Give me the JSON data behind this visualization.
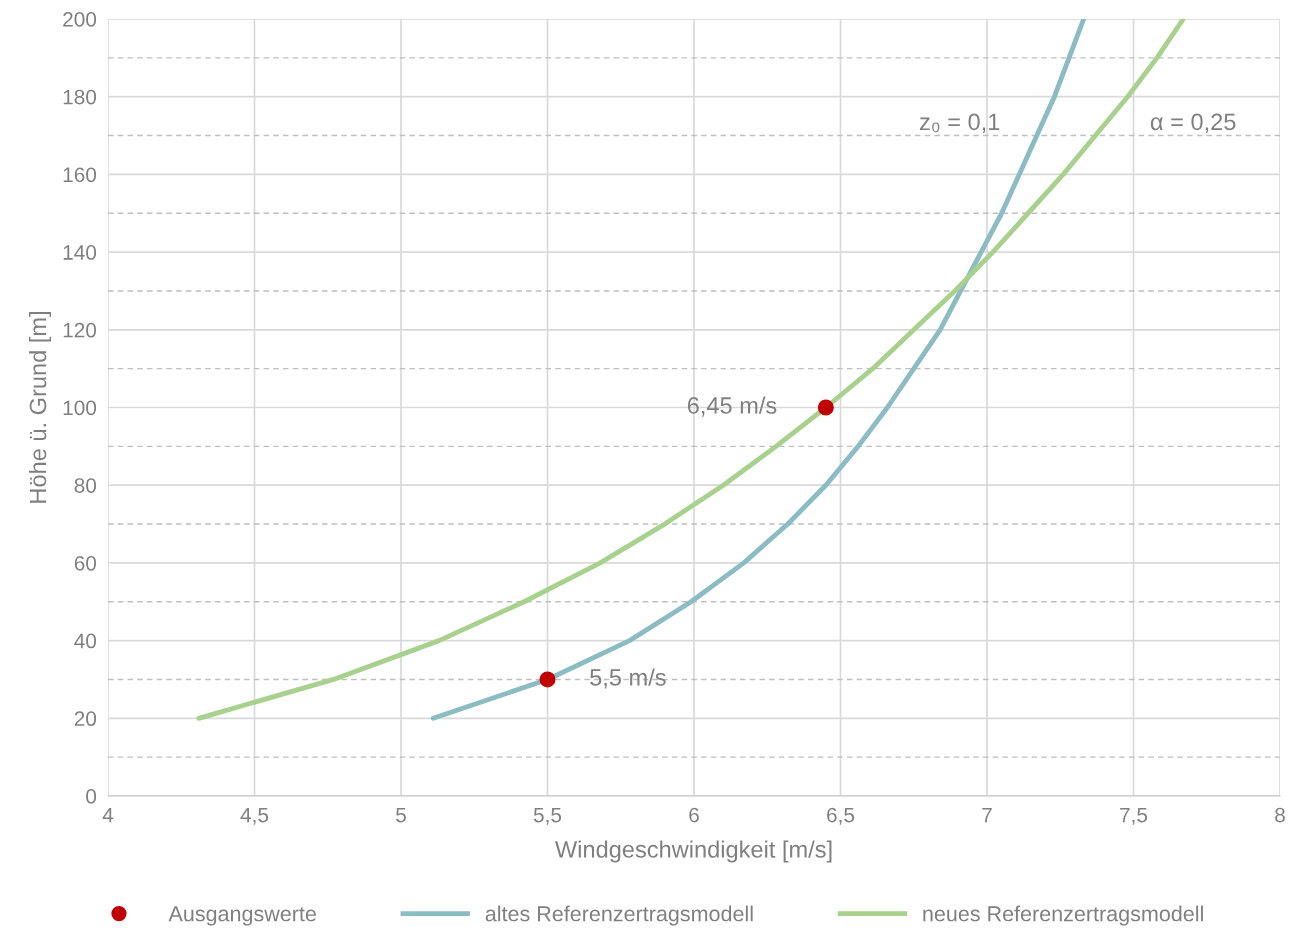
{
  "chart_data": {
    "type": "line",
    "xlabel": "Windgeschwindigkeit [m/s]",
    "ylabel": "Höhe ü. Grund [m]",
    "xlim": [
      4,
      8
    ],
    "ylim": [
      0,
      200
    ],
    "xticks": [
      4,
      {
        "value": 4.5,
        "label": "4,5"
      },
      5,
      {
        "value": 5.5,
        "label": "5,5"
      },
      6,
      {
        "value": 6.5,
        "label": "6,5"
      },
      7,
      {
        "value": 7.5,
        "label": "7,5"
      },
      8
    ],
    "yticks": [
      0,
      20,
      40,
      60,
      80,
      100,
      120,
      140,
      160,
      180,
      200
    ],
    "grid": true,
    "legend": "bottom",
    "marker": "none",
    "line_style": "solid",
    "series": [
      {
        "name": "Ausgangswerte",
        "type": "scatter",
        "marker": "circle",
        "color": "#c00000",
        "x": [
          5.5,
          6.45
        ],
        "values": [
          30,
          100
        ]
      },
      {
        "name": "altes Referenzertragsmodell",
        "color": "#8bbcc3",
        "x": [
          5.11,
          5.5,
          5.78,
          5.99,
          6.17,
          6.32,
          6.45,
          6.56,
          6.66,
          6.75,
          6.84,
          6.91,
          6.98,
          7.05,
          7.11,
          7.17,
          7.23,
          7.28,
          7.33
        ],
        "values": [
          20,
          30,
          40,
          50,
          60,
          70,
          80,
          90,
          100,
          110,
          120,
          130,
          140,
          150,
          160,
          170,
          180,
          190,
          200
        ]
      },
      {
        "name": "neues Referenzertragsmodell",
        "color": "#a9d18e",
        "x": [
          4.31,
          4.77,
          5.13,
          5.42,
          5.68,
          5.9,
          6.1,
          6.28,
          6.45,
          6.61,
          6.75,
          6.89,
          7.02,
          7.14,
          7.26,
          7.37,
          7.48,
          7.58,
          7.67
        ],
        "values": [
          20,
          30,
          40,
          50,
          60,
          70,
          80,
          90,
          100,
          110,
          120,
          130,
          140,
          150,
          160,
          170,
          180,
          190,
          200
        ]
      }
    ],
    "ref_lines": [
      {
        "axis": "y",
        "value": 10,
        "color": "#bfbfbf",
        "line_style": "dashed"
      },
      {
        "axis": "y",
        "value": 30,
        "color": "#bfbfbf",
        "line_style": "dashed"
      },
      {
        "axis": "y",
        "value": 50,
        "color": "#bfbfbf",
        "line_style": "dashed"
      },
      {
        "axis": "y",
        "value": 70,
        "color": "#bfbfbf",
        "line_style": "dashed"
      },
      {
        "axis": "y",
        "value": 90,
        "color": "#bfbfbf",
        "line_style": "dashed"
      },
      {
        "axis": "y",
        "value": 110,
        "color": "#bfbfbf",
        "line_style": "dashed"
      },
      {
        "axis": "y",
        "value": 130,
        "color": "#bfbfbf",
        "line_style": "dashed"
      },
      {
        "axis": "y",
        "value": 150,
        "color": "#bfbfbf",
        "line_style": "dashed"
      },
      {
        "axis": "y",
        "value": 170,
        "color": "#bfbfbf",
        "line_style": "dashed"
      },
      {
        "axis": "y",
        "value": 190,
        "color": "#bfbfbf",
        "line_style": "dashed"
      }
    ],
    "annotations": [
      {
        "text": "6,45 m/s",
        "x": 6.45,
        "y": 100
      },
      {
        "text": "5,5 m/s",
        "x": 5.5,
        "y": 30
      },
      "z₀ = 0,1",
      "α = 0,25"
    ]
  }
}
